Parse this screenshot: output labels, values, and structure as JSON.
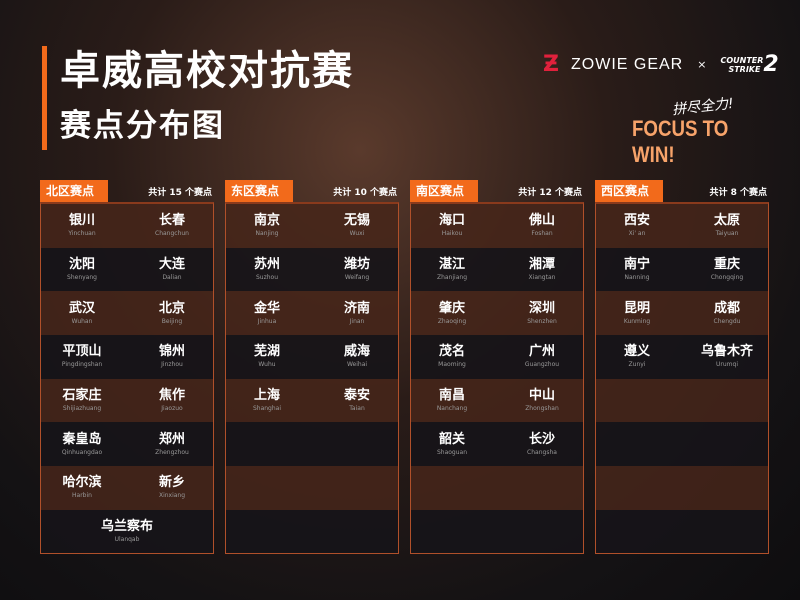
{
  "header": {
    "title": "卓威高校对抗赛",
    "subtitle": "赛点分布图"
  },
  "brand": {
    "zowie": "ZOWIE GEAR",
    "times": "×",
    "cs_line1": "COUNTER",
    "cs_line2": "STRIKE",
    "cs_num": "2",
    "slogan_cn": "拼尽全力!",
    "slogan": "FOCUS TO WIN!"
  },
  "colors": {
    "accent": "#f26a1b",
    "zowie_red": "#e0213c"
  },
  "regions": [
    {
      "label": "北区赛点",
      "count": "共计 15 个赛点",
      "cities": [
        {
          "cn": "银川",
          "py": "Yinchuan"
        },
        {
          "cn": "长春",
          "py": "Changchun"
        },
        {
          "cn": "沈阳",
          "py": "Shenyang"
        },
        {
          "cn": "大连",
          "py": "Dalian"
        },
        {
          "cn": "武汉",
          "py": "Wuhan"
        },
        {
          "cn": "北京",
          "py": "Beijing"
        },
        {
          "cn": "平顶山",
          "py": "Pingdingshan"
        },
        {
          "cn": "锦州",
          "py": "Jinzhou"
        },
        {
          "cn": "石家庄",
          "py": "Shijiazhuang"
        },
        {
          "cn": "焦作",
          "py": "Jiaozuo"
        },
        {
          "cn": "秦皇岛",
          "py": "Qinhuangdao"
        },
        {
          "cn": "郑州",
          "py": "Zhengzhou"
        },
        {
          "cn": "哈尔滨",
          "py": "Harbin"
        },
        {
          "cn": "新乡",
          "py": "Xinxiang"
        },
        {
          "cn": "乌兰察布",
          "py": "Ulanqab"
        }
      ]
    },
    {
      "label": "东区赛点",
      "count": "共计 10 个赛点",
      "cities": [
        {
          "cn": "南京",
          "py": "Nanjing"
        },
        {
          "cn": "无锡",
          "py": "Wuxi"
        },
        {
          "cn": "苏州",
          "py": "Suzhou"
        },
        {
          "cn": "潍坊",
          "py": "Weifang"
        },
        {
          "cn": "金华",
          "py": "Jinhua"
        },
        {
          "cn": "济南",
          "py": "Jinan"
        },
        {
          "cn": "芜湖",
          "py": "Wuhu"
        },
        {
          "cn": "威海",
          "py": "Weihai"
        },
        {
          "cn": "上海",
          "py": "Shanghai"
        },
        {
          "cn": "泰安",
          "py": "Taian"
        }
      ]
    },
    {
      "label": "南区赛点",
      "count": "共计 12 个赛点",
      "cities": [
        {
          "cn": "海口",
          "py": "Haikou"
        },
        {
          "cn": "佛山",
          "py": "Foshan"
        },
        {
          "cn": "湛江",
          "py": "Zhanjiang"
        },
        {
          "cn": "湘潭",
          "py": "Xiangtan"
        },
        {
          "cn": "肇庆",
          "py": "Zhaoqing"
        },
        {
          "cn": "深圳",
          "py": "Shenzhen"
        },
        {
          "cn": "茂名",
          "py": "Maoming"
        },
        {
          "cn": "广州",
          "py": "Guangzhou"
        },
        {
          "cn": "南昌",
          "py": "Nanchang"
        },
        {
          "cn": "中山",
          "py": "Zhongshan"
        },
        {
          "cn": "韶关",
          "py": "Shaoguan"
        },
        {
          "cn": "长沙",
          "py": "Changsha"
        }
      ]
    },
    {
      "label": "西区赛点",
      "count": "共计 8 个赛点",
      "cities": [
        {
          "cn": "西安",
          "py": "Xi' an"
        },
        {
          "cn": "太原",
          "py": "Taiyuan"
        },
        {
          "cn": "南宁",
          "py": "Nanning"
        },
        {
          "cn": "重庆",
          "py": "Chongqing"
        },
        {
          "cn": "昆明",
          "py": "Kunming"
        },
        {
          "cn": "成都",
          "py": "Chengdu"
        },
        {
          "cn": "遵义",
          "py": "Zunyi"
        },
        {
          "cn": "乌鲁木齐",
          "py": "Urumqi"
        }
      ]
    }
  ]
}
